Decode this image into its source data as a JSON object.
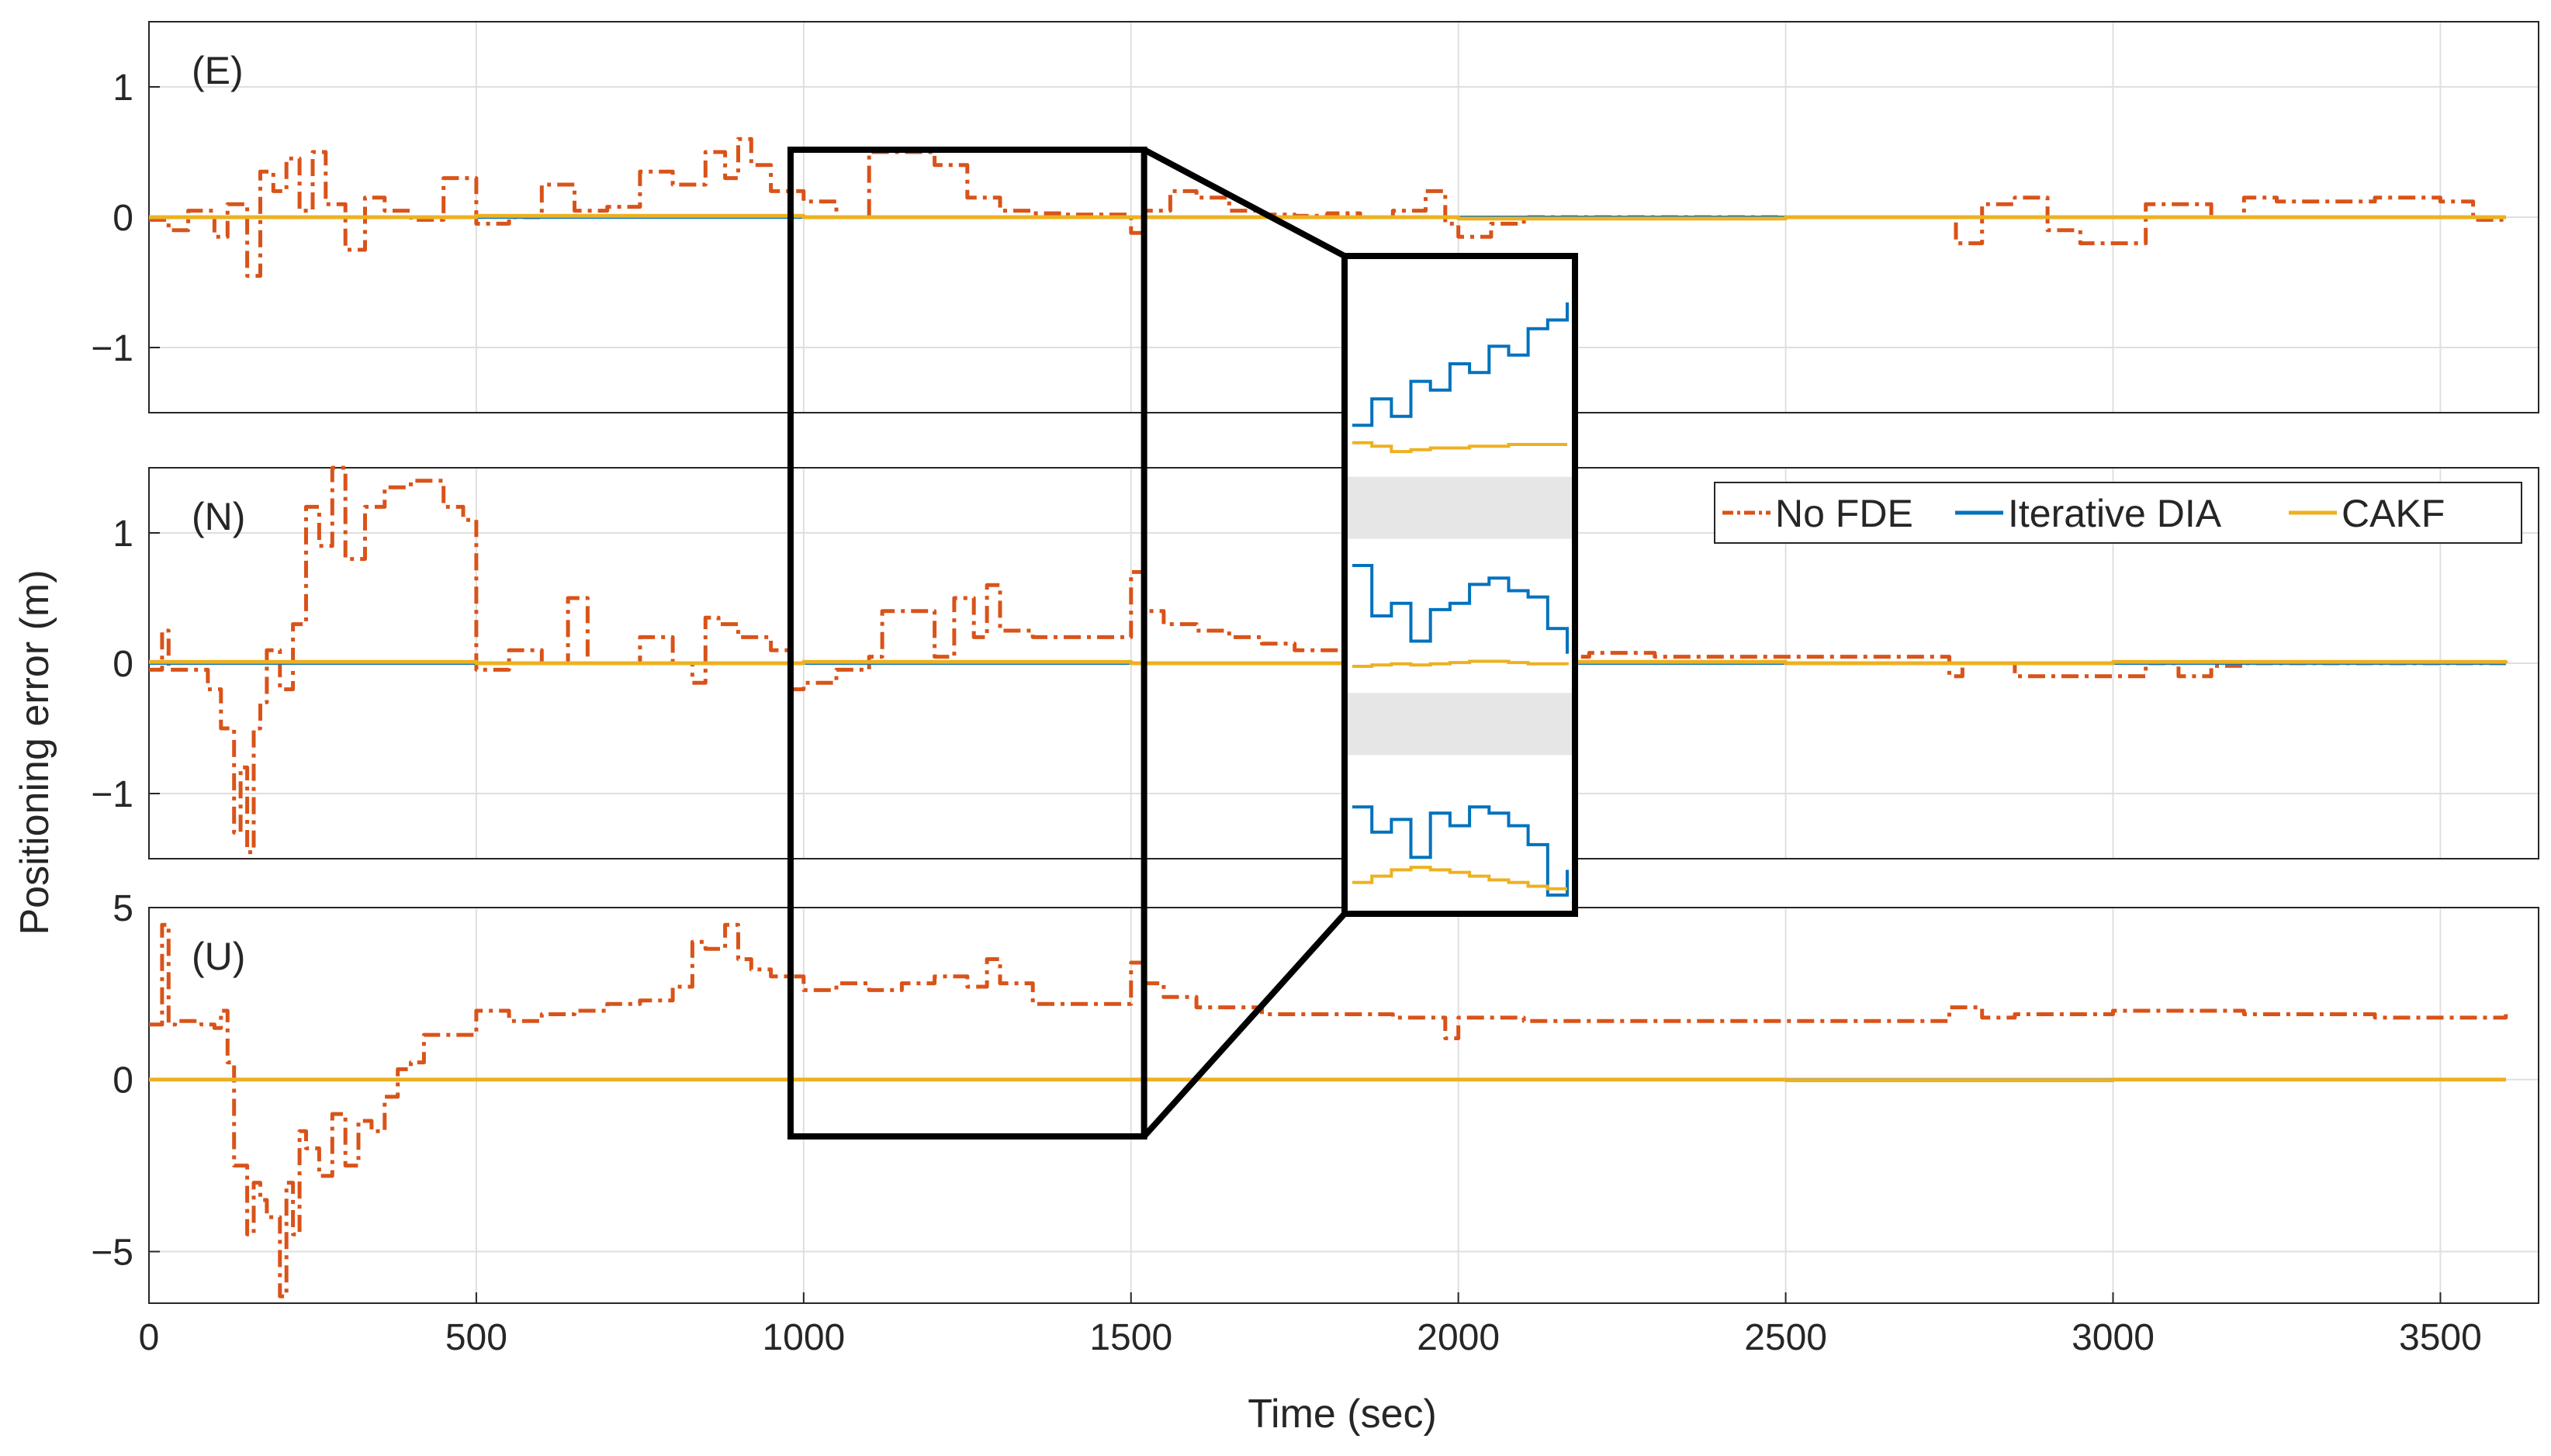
{
  "chart_data": {
    "type": "line",
    "xlabel": "Time (sec)",
    "ylabel": "Positioning error (m)",
    "xlim": [
      0,
      3650
    ],
    "xticks": [
      0,
      500,
      1000,
      1500,
      2000,
      2500,
      3000,
      3500
    ],
    "grid": true,
    "legend": {
      "placement": "middle panel, top-right",
      "entries": [
        "No FDE",
        "Iterative DIA",
        "CAKF"
      ]
    },
    "colors": {
      "No FDE": "#D95319",
      "Iterative DIA": "#0072BD",
      "CAKF": "#EDB120",
      "zoom_box": "#000000",
      "grid": "#DFDFDF"
    },
    "panels": [
      {
        "label": "(E)",
        "ylim": [
          -1.5,
          1.5
        ],
        "yticks": [
          -1,
          0,
          1
        ],
        "ytick_labels": [
          "−1",
          "0",
          "1"
        ],
        "series": [
          {
            "name": "No FDE",
            "x": [
              0,
              30,
              60,
              100,
              120,
              150,
              170,
              190,
              210,
              230,
              250,
              270,
              300,
              330,
              360,
              400,
              450,
              500,
              550,
              600,
              650,
              700,
              750,
              800,
              850,
              880,
              900,
              920,
              950,
              1000,
              1050,
              1100,
              1150,
              1200,
              1250,
              1300,
              1350,
              1400,
              1450,
              1500,
              1520,
              1560,
              1600,
              1650,
              1700,
              1750,
              1800,
              1850,
              1900,
              1950,
              1980,
              2000,
              2050,
              2100,
              2200,
              2300,
              2400,
              2500,
              2600,
              2700,
              2760,
              2800,
              2850,
              2900,
              2950,
              3000,
              3050,
              3100,
              3150,
              3200,
              3250,
              3300,
              3400,
              3500,
              3550,
              3600
            ],
            "y": [
              -0.02,
              -0.1,
              0.05,
              -0.15,
              0.1,
              -0.45,
              0.35,
              0.2,
              0.45,
              0.05,
              0.5,
              0.1,
              -0.25,
              0.15,
              0.05,
              -0.02,
              0.3,
              -0.05,
              0.0,
              0.25,
              0.05,
              0.08,
              0.35,
              0.25,
              0.5,
              0.3,
              0.6,
              0.4,
              0.2,
              0.12,
              0.0,
              0.5,
              0.5,
              0.4,
              0.15,
              0.05,
              0.03,
              0.02,
              0.02,
              -0.12,
              0.05,
              0.2,
              0.15,
              0.05,
              0.02,
              0.01,
              0.03,
              0.0,
              0.05,
              0.2,
              -0.05,
              -0.15,
              -0.05,
              0.0,
              0.0,
              0.0,
              0.0,
              0.0,
              0.0,
              0.0,
              -0.2,
              0.1,
              0.15,
              -0.1,
              -0.2,
              -0.2,
              0.1,
              0.1,
              0.0,
              0.15,
              0.12,
              0.12,
              0.15,
              0.12,
              -0.02,
              -0.03
            ]
          },
          {
            "name": "Iterative DIA",
            "x": [
              0,
              3600
            ],
            "y": [
              0.0,
              0.0
            ]
          },
          {
            "name": "CAKF",
            "x": [
              0,
              500,
              1000,
              1500,
              2000,
              2500,
              3000,
              3600
            ],
            "y": [
              0.0,
              0.01,
              0.0,
              0.0,
              -0.01,
              0.0,
              0.0,
              0.0
            ]
          }
        ]
      },
      {
        "label": "(N)",
        "ylim": [
          -1.5,
          1.5
        ],
        "yticks": [
          -1,
          0,
          1
        ],
        "ytick_labels": [
          "−1",
          "0",
          "1"
        ],
        "series": [
          {
            "name": "No FDE",
            "x": [
              0,
              20,
              30,
              60,
              90,
              110,
              130,
              140,
              150,
              160,
              170,
              180,
              200,
              220,
              240,
              260,
              280,
              300,
              330,
              360,
              400,
              450,
              480,
              500,
              550,
              600,
              640,
              670,
              700,
              750,
              800,
              830,
              850,
              870,
              900,
              950,
              980,
              1000,
              1050,
              1100,
              1120,
              1150,
              1200,
              1230,
              1260,
              1280,
              1300,
              1350,
              1400,
              1450,
              1500,
              1520,
              1550,
              1600,
              1650,
              1700,
              1750,
              1800,
              1850,
              1900,
              2000,
              2100,
              2200,
              2300,
              2400,
              2500,
              2600,
              2700,
              2750,
              2770,
              2800,
              2850,
              2900,
              2950,
              3000,
              3050,
              3100,
              3150,
              3200,
              3300,
              3400,
              3500,
              3600
            ],
            "y": [
              -0.05,
              0.25,
              -0.05,
              -0.05,
              -0.2,
              -0.5,
              -1.3,
              -0.8,
              -1.45,
              -0.5,
              -0.3,
              0.1,
              -0.2,
              0.3,
              1.2,
              0.9,
              1.5,
              0.8,
              1.2,
              1.35,
              1.4,
              1.2,
              1.1,
              -0.05,
              0.1,
              0.0,
              0.5,
              0.0,
              0.0,
              0.2,
              0.0,
              -0.15,
              0.35,
              0.3,
              0.2,
              0.1,
              -0.2,
              -0.15,
              -0.05,
              0.05,
              0.4,
              0.4,
              0.05,
              0.5,
              0.2,
              0.6,
              0.25,
              0.2,
              0.2,
              0.2,
              0.7,
              0.4,
              0.3,
              0.25,
              0.2,
              0.15,
              0.1,
              0.1,
              0.1,
              0.1,
              0.05,
              0.05,
              0.08,
              0.05,
              0.05,
              0.05,
              0.05,
              0.05,
              -0.1,
              0.0,
              0.0,
              -0.1,
              -0.1,
              -0.1,
              -0.1,
              0.0,
              -0.1,
              -0.02,
              0.0,
              0.0,
              0.0,
              0.0,
              0.0
            ]
          },
          {
            "name": "Iterative DIA",
            "x": [
              0,
              3600
            ],
            "y": [
              0.0,
              0.0
            ]
          },
          {
            "name": "CAKF",
            "x": [
              0,
              500,
              1000,
              1500,
              2000,
              2500,
              3000,
              3600
            ],
            "y": [
              0.01,
              0.0,
              0.01,
              0.0,
              0.01,
              0.0,
              0.01,
              0.0
            ]
          }
        ]
      },
      {
        "label": "(U)",
        "ylim": [
          -6.5,
          5
        ],
        "yticks": [
          -5,
          0,
          5
        ],
        "ytick_labels": [
          "−5",
          "0",
          "5"
        ],
        "series": [
          {
            "name": "No FDE",
            "x": [
              0,
              10,
              20,
              30,
              40,
              60,
              80,
              100,
              110,
              120,
              130,
              150,
              160,
              170,
              180,
              200,
              210,
              220,
              230,
              240,
              260,
              280,
              300,
              320,
              340,
              360,
              380,
              400,
              420,
              450,
              500,
              550,
              600,
              650,
              700,
              750,
              800,
              830,
              850,
              880,
              900,
              920,
              950,
              1000,
              1050,
              1100,
              1150,
              1200,
              1250,
              1280,
              1300,
              1350,
              1400,
              1450,
              1500,
              1520,
              1550,
              1600,
              1700,
              1800,
              1900,
              1980,
              2000,
              2100,
              2200,
              2300,
              2400,
              2500,
              2600,
              2700,
              2750,
              2800,
              2850,
              2900,
              3000,
              3100,
              3200,
              3300,
              3400,
              3500,
              3600
            ],
            "y": [
              1.6,
              1.6,
              4.5,
              1.6,
              1.7,
              1.7,
              1.6,
              1.5,
              2.0,
              0.5,
              -2.5,
              -4.5,
              -3.0,
              -3.5,
              -4.0,
              -6.3,
              -3.0,
              -4.5,
              -1.5,
              -2.0,
              -2.8,
              -1.0,
              -2.5,
              -1.2,
              -1.5,
              -0.5,
              0.3,
              0.5,
              1.3,
              1.3,
              2.0,
              1.7,
              1.9,
              2.0,
              2.2,
              2.3,
              2.7,
              4.0,
              3.8,
              4.5,
              3.5,
              3.2,
              3.0,
              2.6,
              2.8,
              2.6,
              2.8,
              3.0,
              2.7,
              3.5,
              2.8,
              2.2,
              2.2,
              2.2,
              3.4,
              2.8,
              2.4,
              2.1,
              1.9,
              1.9,
              1.8,
              1.2,
              1.8,
              1.7,
              1.7,
              1.7,
              1.7,
              1.7,
              1.7,
              1.7,
              2.1,
              1.8,
              1.9,
              1.9,
              2.0,
              2.0,
              1.9,
              1.9,
              1.8,
              1.8,
              1.9
            ]
          },
          {
            "name": "Iterative DIA",
            "x": [
              0,
              3600
            ],
            "y": [
              0.0,
              0.0
            ]
          },
          {
            "name": "CAKF",
            "x": [
              0,
              500,
              1000,
              1500,
              2000,
              2500,
              3000,
              3600
            ],
            "y": [
              0.0,
              0.0,
              0.0,
              0.0,
              0.0,
              -0.02,
              0.0,
              0.0
            ]
          }
        ]
      }
    ],
    "zoom_region": {
      "x_range": [
        980,
        1520
      ],
      "panels": [
        "(E)",
        "(N)",
        "(U)"
      ]
    },
    "inset": {
      "description": "magnified view of the outlined time window",
      "rows": [
        {
          "panel": "(E)",
          "Iterative DIA": [
            0.1,
            0.25,
            0.15,
            0.35,
            0.3,
            0.45,
            0.4,
            0.55,
            0.5,
            0.65,
            0.7,
            0.8
          ],
          "CAKF": [
            0.0,
            -0.02,
            -0.05,
            -0.04,
            -0.03,
            -0.03,
            -0.02,
            -0.02,
            -0.01,
            -0.01,
            -0.01,
            -0.01
          ]
        },
        {
          "panel": "(N)",
          "Iterative DIA": [
            0.8,
            0.4,
            0.5,
            0.2,
            0.45,
            0.5,
            0.65,
            0.7,
            0.6,
            0.55,
            0.3,
            0.1
          ],
          "CAKF": [
            0.0,
            0.01,
            0.02,
            0.01,
            0.02,
            0.03,
            0.04,
            0.04,
            0.03,
            0.02,
            0.02,
            0.01
          ]
        },
        {
          "panel": "(U)",
          "Iterative DIA": [
            0.6,
            0.4,
            0.5,
            0.2,
            0.55,
            0.45,
            0.6,
            0.55,
            0.45,
            0.3,
            -0.1,
            0.1
          ],
          "CAKF": [
            0.0,
            0.05,
            0.1,
            0.12,
            0.1,
            0.08,
            0.05,
            0.02,
            0.0,
            -0.03,
            -0.05,
            -0.05
          ]
        }
      ]
    }
  }
}
